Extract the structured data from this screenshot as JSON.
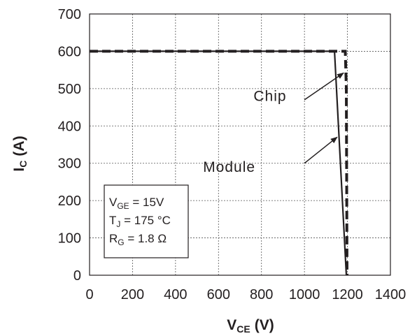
{
  "chart_data": {
    "type": "line",
    "xlabel": {
      "main": "V",
      "sub": "CE",
      "unit": "(V)"
    },
    "ylabel": {
      "main": "I",
      "sub": "C",
      "unit": "(A)"
    },
    "xlim": [
      0,
      1400
    ],
    "ylim": [
      0,
      700
    ],
    "x_ticks": [
      "0",
      "200",
      "400",
      "600",
      "800",
      "1000",
      "1200",
      "1400"
    ],
    "y_ticks": [
      "0",
      "100",
      "200",
      "300",
      "400",
      "500",
      "600",
      "700"
    ],
    "grid": true,
    "series": [
      {
        "name": "Chip",
        "style": "dashed",
        "color": "#231f20",
        "points": [
          [
            0,
            600
          ],
          [
            1190,
            600
          ],
          [
            1195,
            500
          ],
          [
            1198,
            0
          ]
        ]
      },
      {
        "name": "Module",
        "style": "solid",
        "color": "#231f20",
        "points": [
          [
            0,
            600
          ],
          [
            1140,
            600
          ],
          [
            1195,
            0
          ]
        ]
      }
    ],
    "annotations": [
      {
        "label": "Chip",
        "text_at": [
          840,
          480
        ],
        "arrow_from": [
          1000,
          470
        ],
        "arrow_to": [
          1182,
          542
        ]
      },
      {
        "label": "Module",
        "text_at": [
          650,
          290
        ],
        "arrow_from": [
          1000,
          300
        ],
        "arrow_to": [
          1152,
          370
        ]
      }
    ],
    "conditions": [
      {
        "main": "V",
        "sub": "GE",
        "rest": " = 15V"
      },
      {
        "main": "T",
        "sub": "J",
        "rest": " = 175 °C"
      },
      {
        "main": "R",
        "sub": "G",
        "rest": " = 1.8 Ω"
      }
    ]
  }
}
